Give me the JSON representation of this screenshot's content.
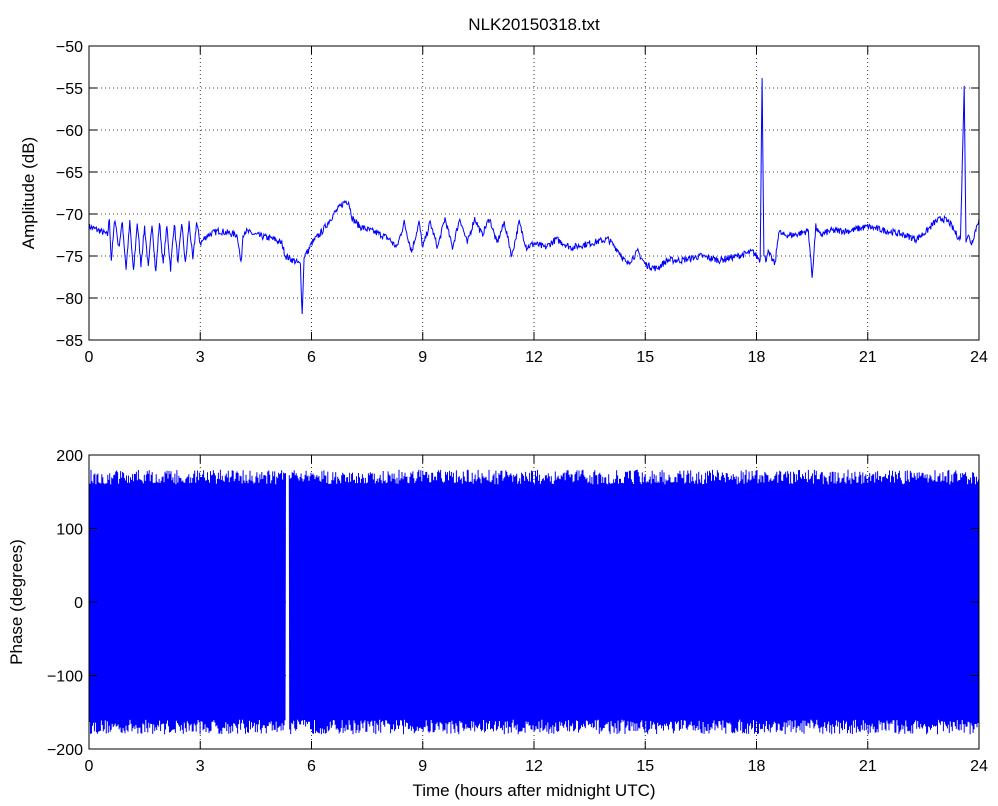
{
  "chart_data": [
    {
      "type": "line",
      "title": "NLK20150318.txt",
      "xlabel": "",
      "ylabel": "Amplitude (dB)",
      "xlim": [
        0,
        24
      ],
      "ylim": [
        -85,
        -50
      ],
      "xticks": [
        0,
        3,
        6,
        9,
        12,
        15,
        18,
        21,
        24
      ],
      "xtick_labels": [
        "0",
        "3",
        "6",
        "9",
        "12",
        "15",
        "18",
        "21",
        "24"
      ],
      "yticks": [
        -85,
        -80,
        -75,
        -70,
        -65,
        -60,
        -55,
        -50
      ],
      "ytick_labels": [
        "−85",
        "−80",
        "−75",
        "−70",
        "−65",
        "−60",
        "−55",
        "−50"
      ],
      "grid": true,
      "series_color": "#0000ff",
      "series": [
        {
          "name": "",
          "x": [
            0,
            0.3,
            0.5,
            0.55,
            0.6,
            0.7,
            0.8,
            0.9,
            1.0,
            1.1,
            1.2,
            1.3,
            1.4,
            1.5,
            1.6,
            1.7,
            1.8,
            1.9,
            2.0,
            2.1,
            2.2,
            2.3,
            2.4,
            2.5,
            2.6,
            2.7,
            2.8,
            2.9,
            3.0,
            3.2,
            3.5,
            4.0,
            4.1,
            4.15,
            4.2,
            4.5,
            5.0,
            5.2,
            5.3,
            5.5,
            5.7,
            5.75,
            5.8,
            5.9,
            6.0,
            6.3,
            6.6,
            6.9,
            7.0,
            7.1,
            7.3,
            7.6,
            7.9,
            8.1,
            8.3,
            8.5,
            8.7,
            8.9,
            9.0,
            9.2,
            9.4,
            9.6,
            9.8,
            10.0,
            10.2,
            10.4,
            10.6,
            10.8,
            11.0,
            11.2,
            11.4,
            11.6,
            11.8,
            12.0,
            12.3,
            12.6,
            13.0,
            13.5,
            14.0,
            14.3,
            14.5,
            14.8,
            15.0,
            15.3,
            15.6,
            16.0,
            16.5,
            17.0,
            17.5,
            17.9,
            18.0,
            18.1,
            18.15,
            18.2,
            18.25,
            18.3,
            18.5,
            18.6,
            18.7,
            19.0,
            19.4,
            19.5,
            19.6,
            19.7,
            20.0,
            20.5,
            21.0,
            21.5,
            22.0,
            22.3,
            22.6,
            22.8,
            23.0,
            23.2,
            23.4,
            23.5,
            23.6,
            23.65,
            23.7,
            23.8,
            24.0
          ],
          "y": [
            -71.5,
            -72.0,
            -72.5,
            -70.5,
            -75.5,
            -70.5,
            -74,
            -71,
            -76.5,
            -71,
            -77,
            -71,
            -76,
            -71.5,
            -76.5,
            -71,
            -77,
            -71,
            -76,
            -71.5,
            -76.5,
            -71,
            -76,
            -71,
            -76,
            -71,
            -75.5,
            -71,
            -73.5,
            -72.5,
            -72,
            -72.5,
            -76,
            -72.5,
            -72,
            -72.5,
            -73,
            -73.5,
            -75,
            -75.5,
            -76,
            -82,
            -75,
            -74.5,
            -73.5,
            -72,
            -70,
            -68.5,
            -68.5,
            -70.5,
            -71.5,
            -72,
            -72.5,
            -73,
            -74,
            -71,
            -74.5,
            -71,
            -74,
            -71,
            -74,
            -70.5,
            -74,
            -70.5,
            -73.5,
            -70.5,
            -72.5,
            -70.5,
            -73.5,
            -71,
            -75,
            -71,
            -74,
            -73.5,
            -74,
            -73,
            -74,
            -73.5,
            -73,
            -74.5,
            -76,
            -74.5,
            -76,
            -76.5,
            -75.5,
            -75.5,
            -75,
            -75.5,
            -75,
            -74.5,
            -75,
            -75.5,
            -53.5,
            -75,
            -75.5,
            -74.5,
            -76,
            -72,
            -72.5,
            -72.5,
            -72,
            -77.5,
            -71.5,
            -72.5,
            -72,
            -72,
            -71.5,
            -72,
            -72.5,
            -73,
            -72,
            -71,
            -70.5,
            -71,
            -72.5,
            -73,
            -55,
            -73,
            -72.5,
            -73.5,
            -70.5
          ]
        }
      ]
    },
    {
      "type": "line",
      "title": "",
      "xlabel": "Time (hours after midnight UTC)",
      "ylabel": "Phase (degrees)",
      "xlim": [
        0,
        24
      ],
      "ylim": [
        -200,
        200
      ],
      "xticks": [
        0,
        3,
        6,
        9,
        12,
        15,
        18,
        21,
        24
      ],
      "xtick_labels": [
        "0",
        "3",
        "6",
        "9",
        "12",
        "15",
        "18",
        "21",
        "24"
      ],
      "yticks": [
        -200,
        -100,
        0,
        100,
        200
      ],
      "ytick_labels": [
        "−200",
        "−100",
        "0",
        "100",
        "200"
      ],
      "grid": true,
      "series_color": "#0000ff",
      "phase_wrap_range": [
        -180,
        180
      ],
      "dense_intervals": [
        [
          0,
          5.3
        ],
        [
          5.4,
          24
        ]
      ],
      "gap_intervals": [
        [
          5.3,
          5.4
        ]
      ]
    }
  ]
}
